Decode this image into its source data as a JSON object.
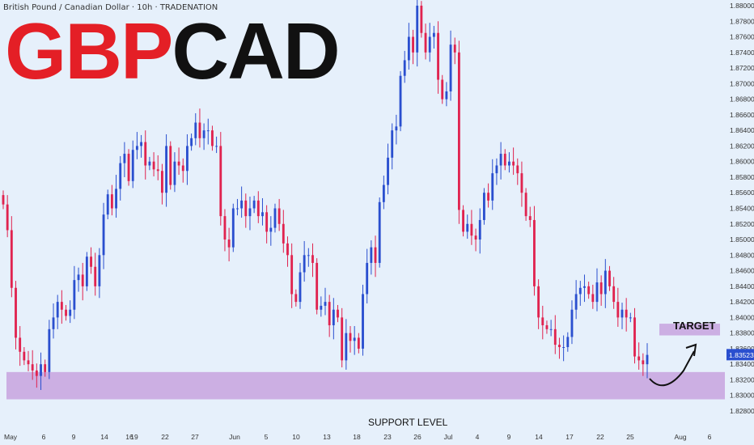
{
  "header": {
    "instrument": "British Pound / Canadian Dollar · 10h · TRADENATION"
  },
  "title": {
    "part1": "GBP",
    "part2": "CAD"
  },
  "annotations": {
    "target": "TARGET",
    "support": "SUPPORT LEVEL"
  },
  "colors": {
    "up": "#2a4fcf",
    "down": "#e0234f",
    "zone": "#c9a7e0",
    "bg": "#e6f0fb",
    "price_tag": "#2a4fcf"
  },
  "chart_data": {
    "type": "candlestick",
    "current_price": 1.83523,
    "current_price_label": "1.83523",
    "ylim": [
      1.828,
      1.88
    ],
    "yticks": [
      "1.88000",
      "1.87800",
      "1.87600",
      "1.87400",
      "1.87200",
      "1.87000",
      "1.86800",
      "1.86600",
      "1.86400",
      "1.86200",
      "1.86000",
      "1.85800",
      "1.85600",
      "1.85400",
      "1.85200",
      "1.85000",
      "1.84800",
      "1.84600",
      "1.84400",
      "1.84200",
      "1.84000",
      "1.83800",
      "1.83600",
      "1.83400",
      "1.83200",
      "1.83000",
      "1.82800"
    ],
    "xticks": [
      "May",
      "6",
      "9",
      "14",
      "16",
      "19",
      "22",
      "27",
      "Jun",
      "5",
      "10",
      "13",
      "18",
      "23",
      "26",
      "Jul",
      "4",
      "9",
      "14",
      "17",
      "22",
      "25",
      "Aug",
      "6"
    ],
    "support_zone": [
      1.8295,
      1.833
    ],
    "target_zone": [
      1.8377,
      1.8392
    ],
    "closes": [
      1.8545,
      1.8512,
      1.8438,
      1.8374,
      1.8356,
      1.8345,
      1.834,
      1.8332,
      1.8325,
      1.834,
      1.833,
      1.8385,
      1.84,
      1.842,
      1.841,
      1.8402,
      1.841,
      1.8448,
      1.8455,
      1.844,
      1.8478,
      1.8465,
      1.844,
      1.848,
      1.8532,
      1.8558,
      1.854,
      1.8565,
      1.8598,
      1.861,
      1.8575,
      1.8615,
      1.862,
      1.8625,
      1.8595,
      1.86,
      1.859,
      1.8588,
      1.856,
      1.862,
      1.857,
      1.86,
      1.8595,
      1.8588,
      1.862,
      1.863,
      1.865,
      1.863,
      1.864,
      1.864,
      1.862,
      1.862,
      1.853,
      1.85,
      1.849,
      1.854,
      1.854,
      1.855,
      1.853,
      1.854,
      1.855,
      1.853,
      1.8535,
      1.851,
      1.8515,
      1.854,
      1.852,
      1.8495,
      1.848,
      1.843,
      1.842,
      1.8458,
      1.848,
      1.848,
      1.847,
      1.841,
      1.8415,
      1.842,
      1.839,
      1.841,
      1.84,
      1.8345,
      1.838,
      1.837,
      1.8374,
      1.836,
      1.843,
      1.847,
      1.849,
      1.847,
      1.8548,
      1.857,
      1.8605,
      1.864,
      1.8645,
      1.871,
      1.873,
      1.876,
      1.874,
      1.88,
      1.8765,
      1.874,
      1.876,
      1.8765,
      1.8705,
      1.868,
      1.869,
      1.875,
      1.874,
      1.8538,
      1.851,
      1.852,
      1.8505,
      1.85,
      1.8525,
      1.856,
      1.855,
      1.8585,
      1.8595,
      1.861,
      1.8595,
      1.86,
      1.8595,
      1.8585,
      1.856,
      1.853,
      1.8525,
      1.844,
      1.84,
      1.839,
      1.8385,
      1.8385,
      1.8365,
      1.8362,
      1.8362,
      1.8375,
      1.841,
      1.843,
      1.8438,
      1.844,
      1.843,
      1.842,
      1.8445,
      1.843,
      1.846,
      1.844,
      1.842,
      1.84,
      1.841,
      1.84,
      1.84,
      1.835,
      1.8345,
      1.834,
      1.8352
    ],
    "ohlc_note": "open of each candle equals the previous close"
  }
}
